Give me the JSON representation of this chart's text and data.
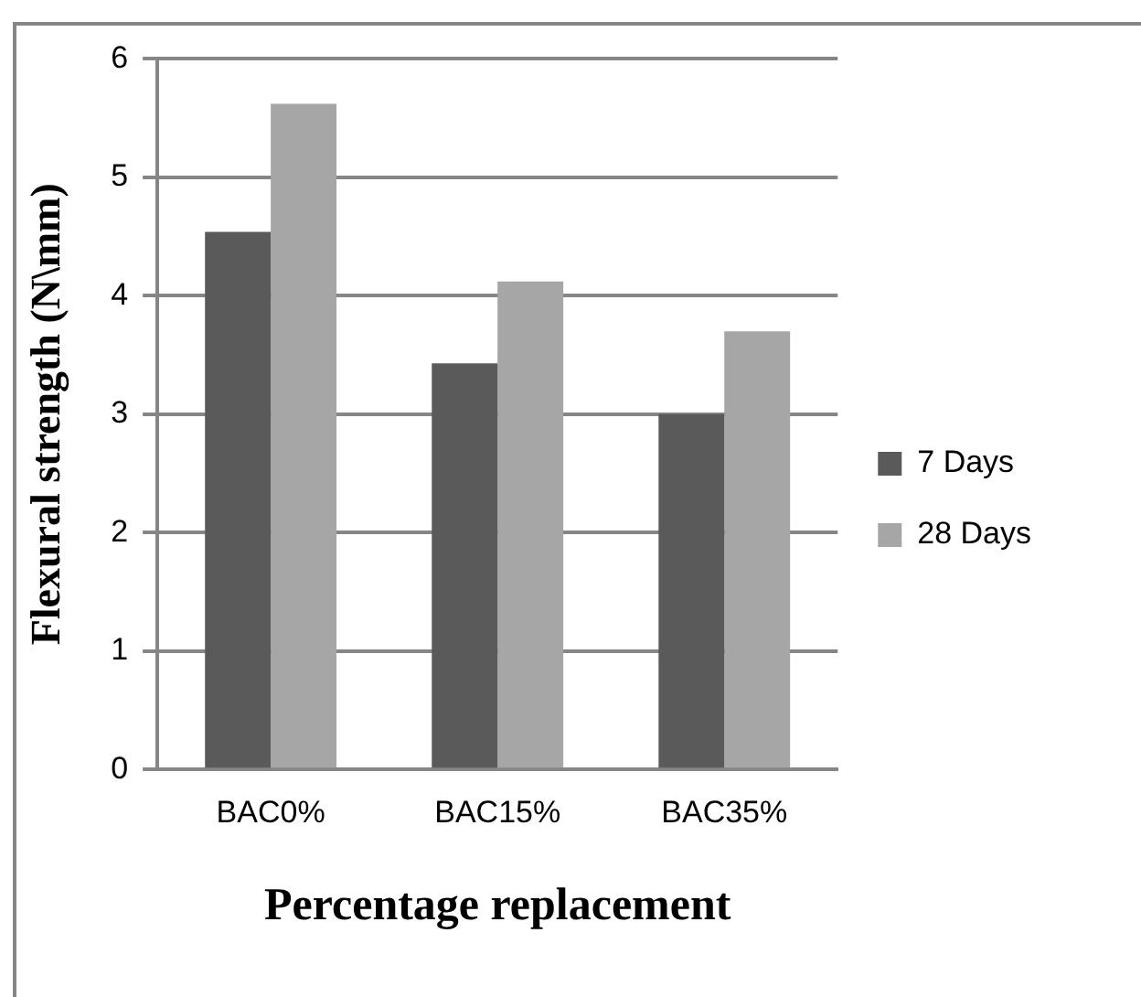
{
  "chart_data": {
    "type": "bar",
    "xlabel": "Percentage replacement",
    "ylabel": "Flexural strength (N\\mm)",
    "categories": [
      "BAC0%",
      "BAC15%",
      "BAC35%"
    ],
    "series": [
      {
        "name": "7 Days",
        "color": "#5a5a5a",
        "values": [
          4.54,
          3.43,
          3.0
        ]
      },
      {
        "name": "28 Days",
        "color": "#a6a6a6",
        "values": [
          5.62,
          4.12,
          3.7
        ]
      }
    ],
    "ylim": [
      0,
      6
    ],
    "yticks": [
      0,
      1,
      2,
      3,
      4,
      5,
      6
    ],
    "grid": "y",
    "legend": "right"
  }
}
